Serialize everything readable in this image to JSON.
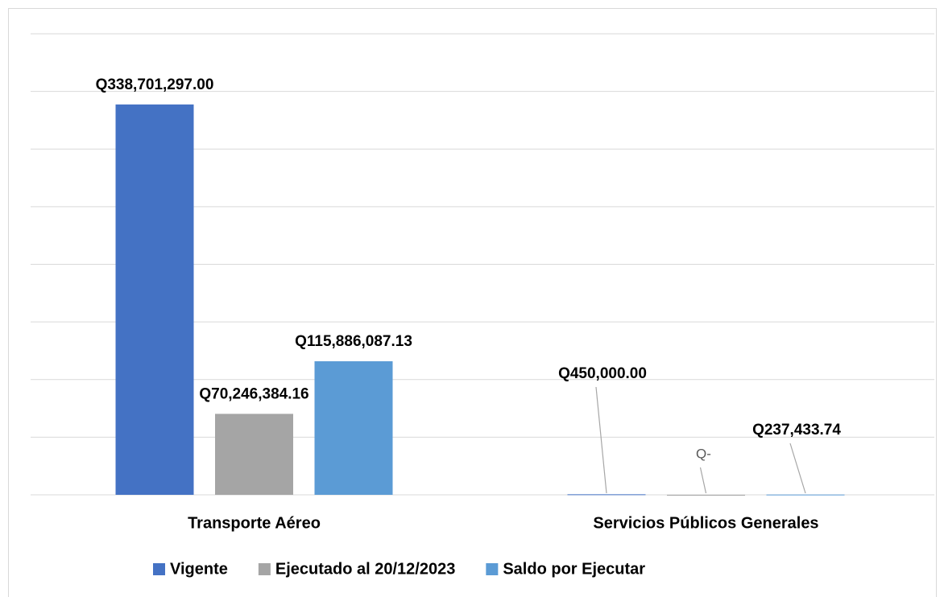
{
  "chart_data": {
    "type": "bar",
    "categories": [
      "Transporte Aéreo",
      "Servicios Públicos Generales"
    ],
    "series": [
      {
        "name": "Vigente",
        "color": "#4472c4",
        "values": [
          338701297.0,
          450000.0
        ],
        "value_labels": [
          "Q338,701,297.00",
          "Q450,000.00"
        ]
      },
      {
        "name": "Ejecutado al 20/12/2023",
        "color": "#a5a5a5",
        "values": [
          70246384.16,
          0
        ],
        "value_labels": [
          "Q70,246,384.16",
          "Q-"
        ]
      },
      {
        "name": "Saldo por Ejecutar",
        "color": "#5b9bd5",
        "values": [
          115886087.13,
          237433.74
        ],
        "value_labels": [
          "Q115,886,087.13",
          "Q237,433.74"
        ]
      }
    ],
    "ylim": [
      0,
      400000000
    ],
    "yticks": [
      0,
      50000000,
      100000000,
      150000000,
      200000000,
      250000000,
      300000000,
      350000000,
      400000000
    ],
    "grid": true,
    "legend": "bottom"
  }
}
